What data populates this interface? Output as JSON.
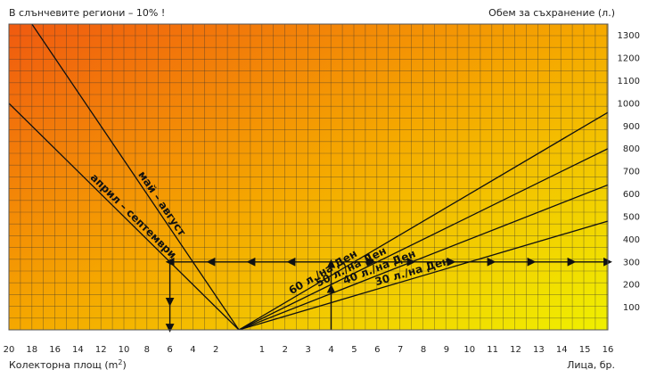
{
  "chart_data": {
    "type": "line",
    "title_left": "В слънчевите региони – 10% !",
    "title_right": "Обем за съхранение (л.)",
    "xlabel_left": "Колекторна площ (m",
    "xlabel_left_sup": "2",
    "xlabel_left_end": ")",
    "xlabel_right": "Лица, бр.",
    "left_axis": {
      "name": "Колекторна площ (m2)",
      "ticks": [
        "20",
        "18",
        "16",
        "14",
        "12",
        "10",
        "8",
        "6",
        "4",
        "2"
      ],
      "range": [
        20,
        0
      ]
    },
    "right_axis": {
      "name": "Лица, бр.",
      "ticks": [
        "1",
        "2",
        "3",
        "4",
        "5",
        "6",
        "7",
        "8",
        "9",
        "10",
        "11",
        "12",
        "13",
        "14",
        "15",
        "16"
      ],
      "range": [
        0,
        16
      ]
    },
    "y_axis": {
      "name": "Обем за съхранение (л.)",
      "ticks": [
        "100",
        "200",
        "300",
        "400",
        "500",
        "600",
        "700",
        "800",
        "900",
        "1000",
        "1100",
        "1200",
        "1300"
      ],
      "range": [
        0,
        1350
      ]
    },
    "grid": true,
    "background_gradient": [
      "#f05a10",
      "#f5a800",
      "#f0f000"
    ],
    "line_color": "#111111",
    "series": [
      {
        "name": "май – август",
        "side": "left",
        "volume_per_m2": 75
      },
      {
        "name": "април – септември",
        "side": "left",
        "volume_per_m2": 50
      },
      {
        "name": "60 л./на Ден",
        "side": "right",
        "litres_per_person": 60
      },
      {
        "name": "50 л./на Ден",
        "side": "right",
        "litres_per_person": 50
      },
      {
        "name": "40 л./на Ден",
        "side": "right",
        "litres_per_person": 40
      },
      {
        "name": "30 л./на Ден",
        "side": "right",
        "litres_per_person": 30
      }
    ],
    "example": {
      "volume": 300,
      "collector_area_m2": 6,
      "persons": 4
    }
  }
}
